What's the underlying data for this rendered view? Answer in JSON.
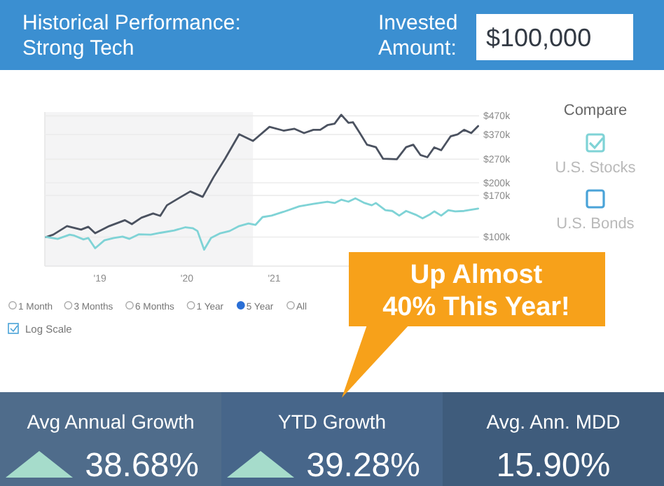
{
  "chart_data": {
    "type": "line",
    "title": "Historical Performance:\nStrong Tech",
    "legend_title": "Compare",
    "legend": "right",
    "log": true,
    "grid": "y",
    "xlim": [
      "2018-05-15",
      "2023-05-10"
    ],
    "xticks": [
      {
        "value": "2019-01-01",
        "label": "'19"
      },
      {
        "value": "2020-01-01",
        "label": "'20"
      },
      {
        "value": "2021-01-01",
        "label": "'21"
      }
    ],
    "ylim": [
      69000,
      493000
    ],
    "yticks": [
      {
        "value": 100000,
        "label": "$100k"
      },
      {
        "value": 170000,
        "label": "$170k"
      },
      {
        "value": 200000,
        "label": "$200k"
      },
      {
        "value": 270000,
        "label": "$270k"
      },
      {
        "value": 370000,
        "label": "$370k"
      },
      {
        "value": 470000,
        "label": "$470k"
      }
    ],
    "bands": [
      {
        "axis": "x",
        "from": "2018-05-15",
        "to": "2020-10-04",
        "color": "#f4f4f5"
      }
    ],
    "series": [
      {
        "color": "#4b5260",
        "x": [
          "2018-05-20",
          "2018-06-19",
          "2018-08-16",
          "2018-10-14",
          "2018-11-13",
          "2018-12-12",
          "2019-02-09",
          "2019-03-18",
          "2019-04-16",
          "2019-05-15",
          "2019-06-24",
          "2019-08-12",
          "2019-09-11",
          "2019-10-09",
          "2019-11-27",
          "2020-01-15",
          "2020-03-07",
          "2020-04-21",
          "2020-06-09",
          "2020-08-07",
          "2020-10-04",
          "2020-12-12",
          "2021-02-09",
          "2021-03-27",
          "2021-05-06",
          "2021-06-14",
          "2021-07-13",
          "2021-08-12",
          "2021-09-11",
          "2021-10-09",
          "2021-11-08",
          "2021-11-27",
          "2021-12-26",
          "2022-01-25",
          "2022-03-03",
          "2022-04-02",
          "2022-05-30",
          "2022-07-08",
          "2022-08-07",
          "2022-09-06",
          "2022-10-05",
          "2022-11-03",
          "2022-12-02",
          "2023-01-11",
          "2023-02-09",
          "2023-03-08",
          "2023-04-07",
          "2023-05-06"
        ],
        "values": [
          100000,
          103000,
          115000,
          110000,
          114000,
          105000,
          115000,
          120000,
          124000,
          118000,
          128000,
          135000,
          131000,
          150000,
          164000,
          179000,
          167000,
          214000,
          272000,
          371000,
          341000,
          408000,
          389000,
          398000,
          377000,
          393000,
          393000,
          417000,
          425000,
          476000,
          430000,
          433000,
          377000,
          325000,
          315000,
          272000,
          270000,
          315000,
          325000,
          285000,
          277000,
          314000,
          303000,
          362000,
          371000,
          393000,
          377000,
          412000
        ]
      },
      {
        "name": "U.S. Stocks",
        "color": "#7fd3d6",
        "x": [
          "2018-05-20",
          "2018-07-08",
          "2018-08-27",
          "2018-09-16",
          "2018-10-24",
          "2018-11-13",
          "2018-12-12",
          "2019-01-20",
          "2019-02-28",
          "2019-04-06",
          "2019-05-05",
          "2019-06-14",
          "2019-08-02",
          "2019-09-11",
          "2019-11-08",
          "2019-12-26",
          "2020-01-25",
          "2020-02-14",
          "2020-03-13",
          "2020-04-11",
          "2020-05-20",
          "2020-06-28",
          "2020-08-07",
          "2020-09-15",
          "2020-10-14",
          "2020-11-13",
          "2020-12-21",
          "2021-02-09",
          "2021-04-16",
          "2021-06-14",
          "2021-08-12",
          "2021-09-11",
          "2021-10-09",
          "2021-11-08",
          "2021-12-07",
          "2022-01-15",
          "2022-02-14",
          "2022-03-03",
          "2022-04-12",
          "2022-05-11",
          "2022-06-09",
          "2022-07-08",
          "2022-08-17",
          "2022-09-15",
          "2022-10-14",
          "2022-11-03",
          "2022-12-02",
          "2023-01-01",
          "2023-01-30",
          "2023-03-08",
          "2023-05-06"
        ],
        "values": [
          100000,
          97700,
          103000,
          101800,
          97000,
          98800,
          86700,
          95900,
          98800,
          100600,
          97700,
          103600,
          103000,
          105500,
          108700,
          113300,
          112000,
          108000,
          85100,
          98800,
          105000,
          108000,
          115000,
          118800,
          116700,
          129000,
          131500,
          138000,
          148000,
          152600,
          157000,
          154400,
          161000,
          157000,
          164000,
          154400,
          150000,
          154400,
          141000,
          139500,
          131500,
          139500,
          133000,
          127000,
          133000,
          138800,
          131500,
          141000,
          138800,
          139500,
          143800
        ]
      }
    ],
    "annotations": [
      "Invested\nAmount:",
      "$100,000",
      "1 Month",
      "3 Months",
      "6 Months",
      "1 Year",
      "5 Year",
      "All",
      "Log Scale",
      "Up Almost\n40% This Year!",
      "Avg Annual Growth",
      "38.68%",
      "YTD Growth",
      "39.28%",
      "Avg. Ann. MDD",
      "15.90%",
      "U.S. Bonds"
    ]
  }
}
